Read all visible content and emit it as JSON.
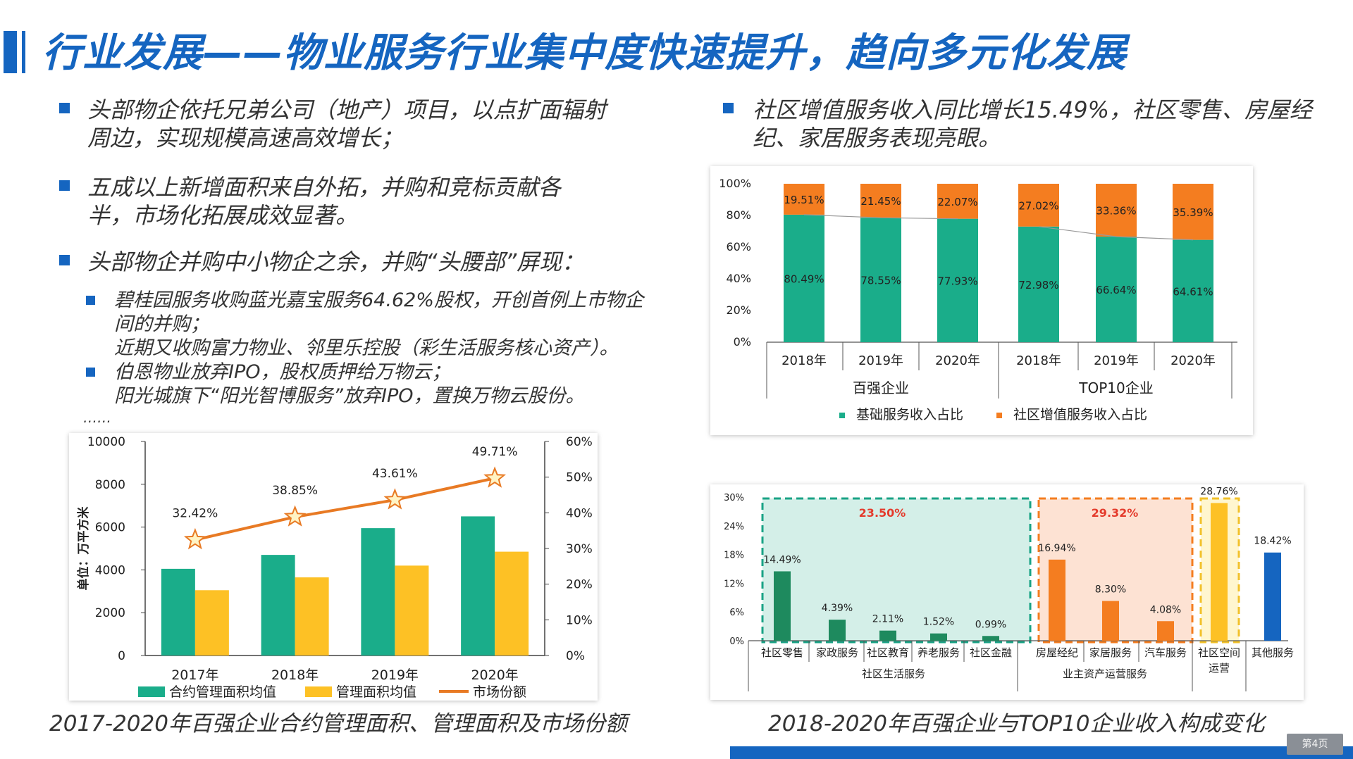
{
  "header": {
    "title": "行业发展——物业服务行业集中度快速提升，趋向多元化发展"
  },
  "left": {
    "bullets": [
      "头部物企依托兄弟公司（地产）项目，以点扩面辐射周边，实现规模高速高效增长；",
      "五成以上新增面积来自外拓，并购和竞标贡献各半，市场化拓展成效显著。",
      "头部物企并购中小物企之余，并购“头腰部”屏现："
    ],
    "sub_bullets": [
      {
        "line1": "碧桂园服务收购蓝光嘉宝服务64.62%股权，开创首例上市物企",
        "line2": "间的并购；",
        "line3": "近期又收购富力物业、邻里乐控股（彩生活服务核心资产）。"
      },
      {
        "line1": "伯恩物业放弃IPO，股权质押给万物云；",
        "line2": "阳光城旗下“阳光智博服务”放弃IPO，置换万物云股份。"
      }
    ],
    "ellipsis": "……",
    "caption": "2017-2020年百强企业合约管理面积、管理面积及市场份额"
  },
  "right": {
    "bullet": "社区增值服务收入同比增长15.49%，社区零售、房屋经纪、家居服务表现亮眼。",
    "caption": "2018-2020年百强企业与TOP10企业收入构成变化"
  },
  "footer": {
    "page_label": "第4页"
  },
  "colors": {
    "accent": "#1565c0",
    "green": "#1aad8a",
    "orange": "#f47d20",
    "yellow": "#fdc125",
    "line": "#e87a24"
  },
  "chart_data": [
    {
      "type": "bar",
      "categories": [
        "2017年",
        "2018年",
        "2019年",
        "2020年"
      ],
      "ylabel": "单位：万平方米",
      "ylim": [
        0,
        10000
      ],
      "yticks": [
        "0",
        "2000",
        "4000",
        "6000",
        "8000",
        "10000"
      ],
      "y2lim": [
        0,
        60
      ],
      "y2ticks": [
        "0%",
        "10%",
        "20%",
        "30%",
        "40%",
        "50%",
        "60%"
      ],
      "series": [
        {
          "name": "合约管理面积均值",
          "values": [
            4050,
            4700,
            5950,
            6500
          ]
        },
        {
          "name": "管理面积均值",
          "values": [
            3050,
            3650,
            4200,
            4850
          ]
        },
        {
          "name": "市场份额",
          "type": "line",
          "axis": "right",
          "values": [
            32.42,
            38.85,
            43.61,
            49.71
          ],
          "labels": [
            "32.42%",
            "38.85%",
            "43.61%",
            "49.71%"
          ]
        }
      ],
      "legend": "bottom",
      "grid": false
    },
    {
      "type": "bar",
      "stacked": true,
      "groups": [
        "百强企业",
        "TOP10企业"
      ],
      "categories": [
        "2018年",
        "2019年",
        "2020年",
        "2018年",
        "2019年",
        "2020年"
      ],
      "yticks": [
        "0%",
        "20%",
        "40%",
        "60%",
        "80%",
        "100%"
      ],
      "ylim": [
        0,
        100
      ],
      "series": [
        {
          "name": "基础服务收入占比",
          "values": [
            80.49,
            78.55,
            77.93,
            72.98,
            66.64,
            64.61
          ],
          "labels": [
            "80.49%",
            "78.55%",
            "77.93%",
            "72.98%",
            "66.64%",
            "64.61%"
          ]
        },
        {
          "name": "社区增值服务收入占比",
          "values": [
            19.51,
            21.45,
            22.07,
            27.02,
            33.36,
            35.39
          ],
          "labels": [
            "19.51%",
            "21.45%",
            "22.07%",
            "27.02%",
            "33.36%",
            "35.39%"
          ]
        }
      ],
      "legend": "bottom",
      "grid": false
    },
    {
      "type": "bar",
      "categories": [
        "社区零售",
        "家政服务",
        "社区教育",
        "养老服务",
        "社区金融",
        "房屋经纪",
        "家居服务",
        "汽车服务",
        "社区空间运营",
        "其他服务"
      ],
      "category_labels": [
        "社区零售",
        "家政服务",
        "社区教育",
        "养老服务",
        "社区金融",
        "房屋经纪",
        "家居服务",
        "汽车服务",
        "社区空间",
        "其他服务"
      ],
      "category_labels_2": [
        "",
        "",
        "",
        "",
        "",
        "",
        "",
        "",
        "运营",
        ""
      ],
      "groups": [
        "社区生活服务",
        "业主资产运营服务"
      ],
      "group_totals": [
        "23.50%",
        "29.32%"
      ],
      "values": [
        14.49,
        4.39,
        2.11,
        1.52,
        0.99,
        16.94,
        8.3,
        4.08,
        28.76,
        18.42
      ],
      "labels": [
        "14.49%",
        "4.39%",
        "2.11%",
        "1.52%",
        "0.99%",
        "16.94%",
        "8.30%",
        "4.08%",
        "28.76%",
        "18.42%"
      ],
      "yticks": [
        "0%",
        "6%",
        "12%",
        "18%",
        "24%",
        "30%"
      ],
      "ylim": [
        0,
        30
      ],
      "grid": false
    }
  ]
}
